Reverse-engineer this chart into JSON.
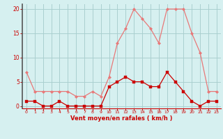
{
  "x": [
    0,
    1,
    2,
    3,
    4,
    5,
    6,
    7,
    8,
    9,
    10,
    11,
    12,
    13,
    14,
    15,
    16,
    17,
    18,
    19,
    20,
    21,
    22,
    23
  ],
  "wind_mean": [
    1,
    1,
    0,
    0,
    1,
    0,
    0,
    0,
    0,
    0,
    4,
    5,
    6,
    5,
    5,
    4,
    4,
    7,
    5,
    3,
    1,
    0,
    1,
    1
  ],
  "wind_gust": [
    7,
    3,
    3,
    3,
    3,
    3,
    2,
    2,
    3,
    2,
    6,
    13,
    16,
    20,
    18,
    16,
    13,
    20,
    20,
    20,
    15,
    11,
    3,
    3
  ],
  "bg_color": "#d6f0f0",
  "grid_color": "#aacfcf",
  "mean_color": "#cc0000",
  "gust_color": "#e87878",
  "xlabel": "Vent moyen/en rafales ( km/h )",
  "xlabel_color": "#cc0000",
  "tick_color": "#cc0000",
  "spine_left_color": "#555555",
  "spine_bottom_color": "#cc0000",
  "ylim": [
    -0.5,
    21
  ],
  "yticks": [
    0,
    5,
    10,
    15,
    20
  ],
  "xlim": [
    -0.5,
    23.5
  ]
}
